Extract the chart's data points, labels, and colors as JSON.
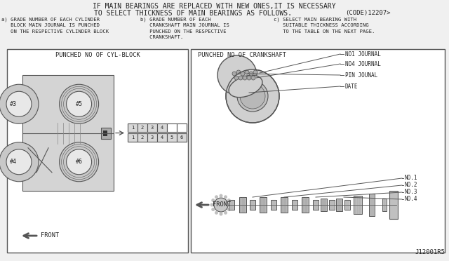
{
  "bg_color": "#f0f0f0",
  "title_line1": "IF MAIN BEARINGS ARE REPLACED WITH NEW ONES,IT IS NECESSARY",
  "title_line2": "TO SELECT THICKNESS OF MAIN BEARINGS AS FOLLOWS.",
  "code_text": "(CODE)12207>",
  "sub_a": "a) GRADE NUMBER OF EACH CYLINDER\n   BLOCK MAIN JOURNAL IS PUNCHED\n   ON THE RESPECTIVE CYLINDER BLOCK",
  "sub_b": "b) GRADE NUMBER OF EACH\n   CRANKSHAFT MAIN JOURNAL IS\n   PUNCHED ON THE RESPECTIVE\n   CRANKSHAFT.",
  "sub_c": "c) SELECT MAIN BEARING WITH\n   SUITABLE THICKNESS ACCORDING\n   TO THE TABLE ON THE NEXT PAGE.",
  "left_box_title": "PUNCHED NO OF CYL-BLOCK",
  "right_box_title": "PUNCHED NO OF CRANKSHAFT",
  "part_id": "J12001R5",
  "font_color": "#222222",
  "line_color": "#555555",
  "white": "#ffffff",
  "light_gray": "#e0e0e0",
  "mid_gray": "#bbbbbb"
}
